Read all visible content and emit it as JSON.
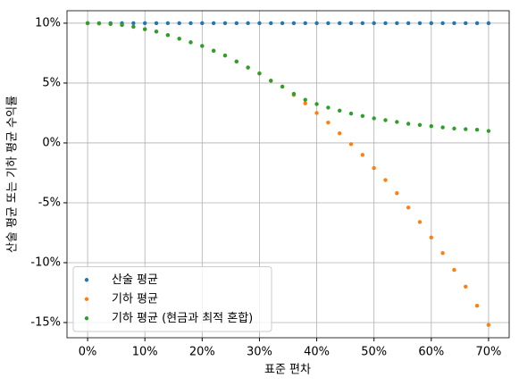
{
  "chart_data": {
    "type": "scatter",
    "xlabel": "표준 편차",
    "ylabel": "산술 평균 또는 기하 평균 수익률",
    "x": [
      0,
      2,
      4,
      6,
      8,
      10,
      12,
      14,
      16,
      18,
      20,
      22,
      24,
      26,
      28,
      30,
      32,
      34,
      36,
      38,
      40,
      42,
      44,
      46,
      48,
      50,
      52,
      54,
      56,
      58,
      60,
      62,
      64,
      66,
      68,
      70
    ],
    "series": [
      {
        "name": "산술 평균",
        "color": "#1f77b4",
        "values": [
          10,
          10,
          10,
          10,
          10,
          10,
          10,
          10,
          10,
          10,
          10,
          10,
          10,
          10,
          10,
          10,
          10,
          10,
          10,
          10,
          10,
          10,
          10,
          10,
          10,
          10,
          10,
          10,
          10,
          10,
          10,
          10,
          10,
          10,
          10,
          10
        ]
      },
      {
        "name": "기하 평균",
        "color": "#ff7f0e",
        "values": [
          10,
          9.98,
          9.93,
          9.85,
          9.7,
          9.5,
          9.3,
          9.0,
          8.7,
          8.4,
          8.1,
          7.7,
          7.3,
          6.8,
          6.3,
          5.8,
          5.2,
          4.7,
          4.0,
          3.3,
          2.5,
          1.7,
          0.8,
          -0.1,
          -1.0,
          -2.1,
          -3.1,
          -4.2,
          -5.4,
          -6.6,
          -7.9,
          -9.2,
          -10.6,
          -12.0,
          -13.6,
          -15.2
        ]
      },
      {
        "name": "기하 평균 (현금과 최적 혼합)",
        "color": "#2ca02c",
        "values": [
          10,
          9.98,
          9.93,
          9.85,
          9.7,
          9.5,
          9.3,
          9.0,
          8.7,
          8.4,
          8.1,
          7.7,
          7.3,
          6.8,
          6.3,
          5.8,
          5.2,
          4.7,
          4.1,
          3.6,
          3.25,
          2.95,
          2.7,
          2.45,
          2.25,
          2.05,
          1.9,
          1.75,
          1.6,
          1.5,
          1.4,
          1.3,
          1.2,
          1.15,
          1.1,
          1.0
        ]
      }
    ],
    "xlim": [
      -3.6,
      73.6
    ],
    "ylim": [
      -16.27,
      11.04
    ],
    "xticks": [
      {
        "value": 0,
        "label": "0%"
      },
      {
        "value": 10,
        "label": "10%"
      },
      {
        "value": 20,
        "label": "20%"
      },
      {
        "value": 30,
        "label": "30%"
      },
      {
        "value": 40,
        "label": "40%"
      },
      {
        "value": 50,
        "label": "50%"
      },
      {
        "value": 60,
        "label": "60%"
      },
      {
        "value": 70,
        "label": "70%"
      }
    ],
    "yticks": [
      {
        "value": -15,
        "label": "-15%"
      },
      {
        "value": -10,
        "label": "-10%"
      },
      {
        "value": -5,
        "label": "-5%"
      },
      {
        "value": 0,
        "label": "0%"
      },
      {
        "value": 5,
        "label": "5%"
      },
      {
        "value": 10,
        "label": "10%"
      }
    ],
    "grid": true,
    "legend": "lower left"
  }
}
